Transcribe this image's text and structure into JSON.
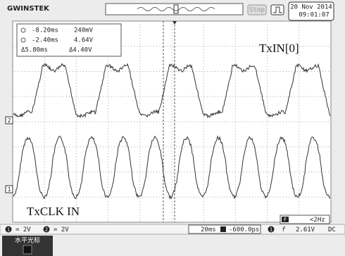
{
  "header": {
    "brand": "GWINSTEK",
    "status": "Stop",
    "date": "20 Nov 2014",
    "time": "09:01:07"
  },
  "cursors": {
    "rows": [
      [
        "-8.20ms",
        "240mV"
      ],
      [
        "-2.40ms",
        "4.64V"
      ],
      [
        "Δ5.80ms",
        "Δ4.40V"
      ]
    ]
  },
  "labels": {
    "upper": "TxIN[0]",
    "lower": "TxCLK IN"
  },
  "markers": {
    "ch2": "2",
    "ch1": "1"
  },
  "status_bar": {
    "ch1_id": "1",
    "ch1_scale": "= 2V",
    "ch2_id": "2",
    "ch2_scale": "= 2V",
    "timebase": "20ms",
    "position": "-600.0ps",
    "trigger_source": "1",
    "trigger_slope": "f",
    "trigger_level": "2.61V",
    "coupling": "DC",
    "freq_icon": "F",
    "freq": "<2Hz"
  },
  "softkey": "水平光标"
}
